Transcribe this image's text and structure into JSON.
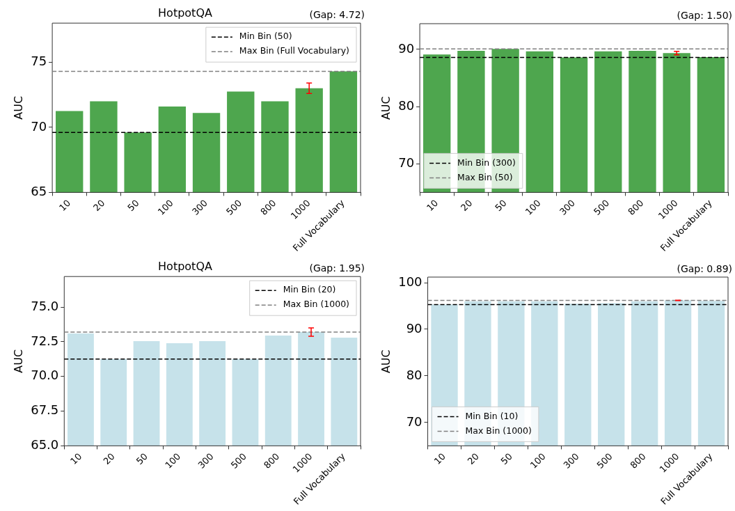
{
  "chart_data": [
    {
      "type": "bar",
      "title": "HotpotQA",
      "ylabel": "AUC",
      "annotations": [
        "(Gap: 4.72)"
      ],
      "categories": [
        "10",
        "20",
        "50",
        "100",
        "300",
        "500",
        "800",
        "1000",
        "Full Vocabulary"
      ],
      "values": [
        71.25,
        72.0,
        69.6,
        71.6,
        71.1,
        72.75,
        72.0,
        73.0,
        74.3
      ],
      "color": "#4ea64e",
      "errors": [
        null,
        null,
        null,
        null,
        null,
        null,
        null,
        0.4,
        null
      ],
      "ylim": [
        65,
        78
      ],
      "yticks": [
        65,
        70,
        75
      ],
      "legend": "top right",
      "ref_lines": [
        {
          "axis": "y",
          "value": 69.6,
          "label": "Min Bin (50)",
          "color": "#000000",
          "line_style": "dashed"
        },
        {
          "axis": "y",
          "value": 74.3,
          "label": "Max Bin (Full Vocabulary)",
          "color": "#808080",
          "line_style": "dashed"
        }
      ]
    },
    {
      "type": "bar",
      "ylabel": "AUC",
      "annotations": [
        "(Gap: 1.50)"
      ],
      "categories": [
        "10",
        "20",
        "50",
        "100",
        "300",
        "500",
        "800",
        "1000",
        "Full Vocabulary"
      ],
      "values": [
        89.1,
        89.75,
        90.1,
        89.65,
        88.6,
        89.65,
        89.75,
        89.35,
        88.65
      ],
      "color": "#4ea64e",
      "errors": [
        null,
        null,
        null,
        null,
        null,
        null,
        null,
        0.3,
        null
      ],
      "ylim": [
        65,
        94.5
      ],
      "yticks": [
        70,
        80,
        90
      ],
      "legend": "bottom left",
      "ref_lines": [
        {
          "axis": "y",
          "value": 88.6,
          "label": "Min Bin (300)",
          "color": "#000000",
          "line_style": "dashed"
        },
        {
          "axis": "y",
          "value": 90.1,
          "label": "Max Bin (50)",
          "color": "#808080",
          "line_style": "dashed"
        }
      ]
    },
    {
      "type": "bar",
      "title": "HotpotQA",
      "ylabel": "AUC",
      "annotations": [
        "(Gap: 1.95)"
      ],
      "categories": [
        "10",
        "20",
        "50",
        "100",
        "300",
        "500",
        "800",
        "1000",
        "Full Vocabulary"
      ],
      "values": [
        73.1,
        71.25,
        72.55,
        72.4,
        72.55,
        71.25,
        72.95,
        73.2,
        72.8
      ],
      "color": "#c6e2ea",
      "errors": [
        null,
        null,
        null,
        null,
        null,
        null,
        null,
        0.3,
        null
      ],
      "ylim": [
        65,
        77.2
      ],
      "yticks": [
        {
          "value": 65,
          "label": "65.0"
        },
        {
          "value": 67.5,
          "label": "67.5"
        },
        {
          "value": 70,
          "label": "70.0"
        },
        {
          "value": 72.5,
          "label": "72.5"
        },
        {
          "value": 75,
          "label": "75.0"
        }
      ],
      "legend": "top right",
      "ref_lines": [
        {
          "axis": "y",
          "value": 71.25,
          "label": "Min Bin (20)",
          "color": "#000000",
          "line_style": "dashed"
        },
        {
          "axis": "y",
          "value": 73.2,
          "label": "Max Bin (1000)",
          "color": "#808080",
          "line_style": "dashed"
        }
      ]
    },
    {
      "type": "bar",
      "ylabel": "AUC",
      "annotations": [
        "(Gap: 0.89)"
      ],
      "categories": [
        "10",
        "20",
        "50",
        "100",
        "300",
        "500",
        "800",
        "1000",
        "Full Vocabulary"
      ],
      "values": [
        95.3,
        96.0,
        96.0,
        96.0,
        95.5,
        95.6,
        96.0,
        96.2,
        96.1
      ],
      "color": "#c6e2ea",
      "errors": [
        null,
        null,
        null,
        null,
        null,
        null,
        null,
        0.05,
        null
      ],
      "ylim": [
        65,
        101.2
      ],
      "yticks": [
        70,
        80,
        90,
        100
      ],
      "legend": "bottom left",
      "ref_lines": [
        {
          "axis": "y",
          "value": 95.3,
          "label": "Min Bin (10)",
          "color": "#000000",
          "line_style": "dashed"
        },
        {
          "axis": "y",
          "value": 96.2,
          "label": "Max Bin (1000)",
          "color": "#808080",
          "line_style": "dashed"
        }
      ]
    }
  ]
}
